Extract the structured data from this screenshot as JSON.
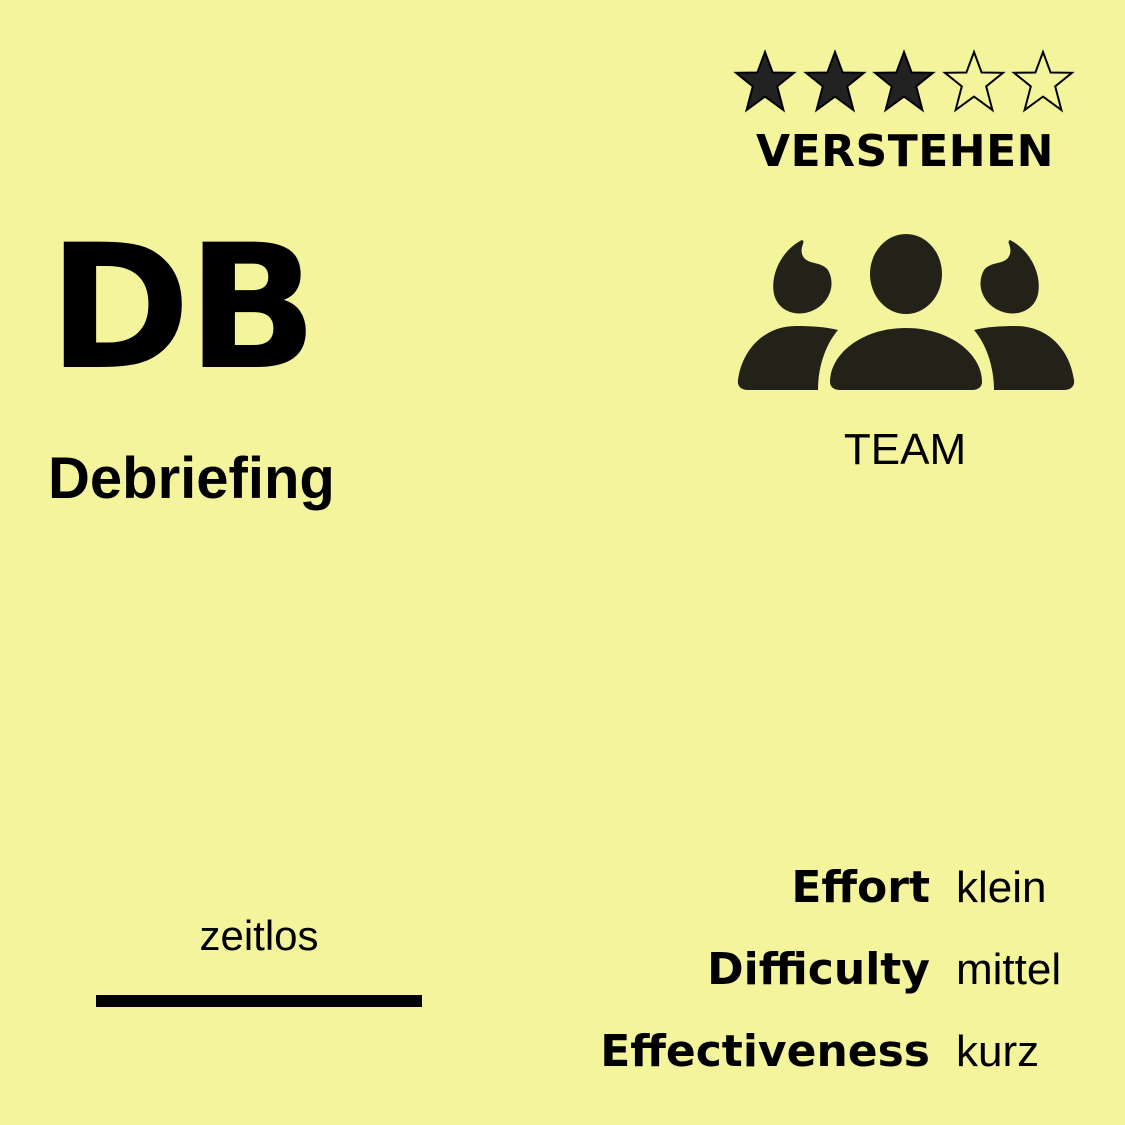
{
  "card": {
    "abbreviation": "DB",
    "name": "Debriefing",
    "background_color": "#f3f49c",
    "text_color": "#000000",
    "icon_color": "#222218"
  },
  "rating": {
    "value": 3,
    "max": 5,
    "category": "VERSTEHEN"
  },
  "audience": {
    "icon": "team-icon",
    "label": "TEAM"
  },
  "duration": {
    "label": "zeitlos"
  },
  "stats": [
    {
      "label": "Effort",
      "value": "klein"
    },
    {
      "label": "Difficulty",
      "value": "mittel"
    },
    {
      "label": "Effectiveness",
      "value": "kurz"
    }
  ]
}
